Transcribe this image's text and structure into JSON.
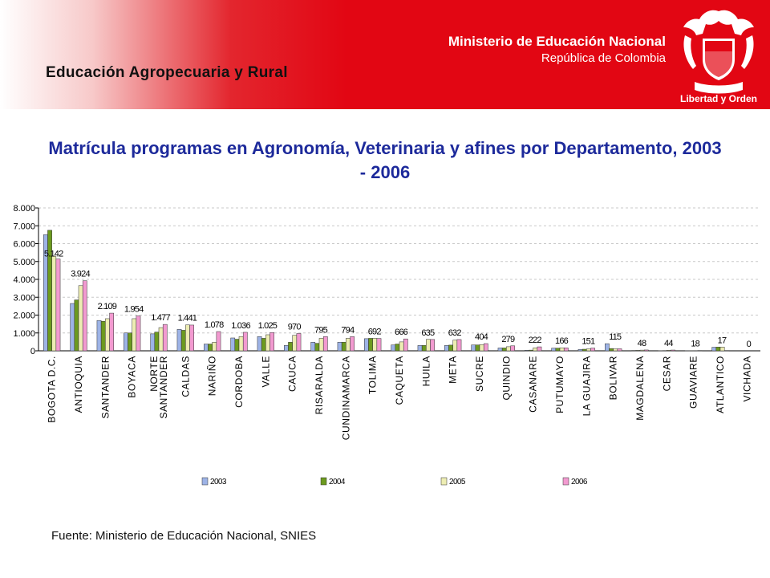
{
  "header": {
    "section_title": "Educación Agropecuaria y Rural",
    "ministry": "Ministerio de Educación Nacional",
    "country": "República de Colombia",
    "motto": "Libertad y Orden"
  },
  "source": "Fuente: Ministerio de Educación Nacional, SNIES",
  "chart_data": {
    "type": "bar",
    "title": "Matrícula programas en Agronomía, Veterinaria y afines por Departamento, 2003 - 2006",
    "xlabel": "",
    "ylabel": "",
    "ylim": [
      0,
      8000
    ],
    "yticks": [
      "0",
      "1.000",
      "2.000",
      "3.000",
      "4.000",
      "5.000",
      "6.000",
      "7.000",
      "8.000"
    ],
    "grid": true,
    "legend_position": "bottom",
    "categories": [
      "BOGOTA D.C.",
      "ANTIOQUIA",
      "SANTANDER",
      "BOYACA",
      "NORTE SANTANDER",
      "CALDAS",
      "NARIÑO",
      "CORDOBA",
      "VALLE",
      "CAUCA",
      "RISARALDA",
      "CUNDINAMARCA",
      "TOLIMA",
      "CAQUETA",
      "HUILA",
      "META",
      "SUCRE",
      "QUINDIO",
      "CASANARE",
      "PUTUMAYO",
      "LA GUAJIRA",
      "BOLIVAR",
      "MAGDALENA",
      "CESAR",
      "GUAVIARE",
      "ATLANTICO",
      "VICHADA"
    ],
    "series": [
      {
        "name": "2003",
        "color": "#9db3e6",
        "values": [
          6500,
          2650,
          1700,
          1000,
          950,
          1200,
          380,
          720,
          800,
          300,
          480,
          480,
          680,
          330,
          300,
          300,
          330,
          160,
          30,
          150,
          80,
          400,
          20,
          10,
          5,
          200,
          0
        ]
      },
      {
        "name": "2004",
        "color": "#6c9a1f",
        "values": [
          6750,
          2850,
          1650,
          1000,
          1050,
          1150,
          380,
          650,
          700,
          480,
          420,
          480,
          700,
          380,
          300,
          320,
          330,
          160,
          40,
          150,
          90,
          130,
          25,
          15,
          8,
          210,
          0
        ]
      },
      {
        "name": "2005",
        "color": "#ededb3",
        "values": [
          5300,
          3650,
          1800,
          1800,
          1300,
          1450,
          480,
          800,
          900,
          870,
          700,
          700,
          700,
          500,
          640,
          600,
          350,
          230,
          170,
          170,
          110,
          110,
          40,
          35,
          12,
          210,
          0
        ]
      },
      {
        "name": "2006",
        "color": "#f29ad0",
        "values": [
          5142,
          3924,
          2109,
          1954,
          1477,
          1441,
          1078,
          1036,
          1025,
          970,
          795,
          794,
          692,
          666,
          635,
          632,
          404,
          279,
          222,
          166,
          151,
          115,
          48,
          44,
          18,
          17,
          0
        ]
      }
    ],
    "data_labels": [
      "5.142",
      "3.924",
      "2.109",
      "1.954",
      "1.477",
      "1.441",
      "1.078",
      "1.036",
      "1.025",
      "970",
      "795",
      "794",
      "692",
      "666",
      "635",
      "632",
      "404",
      "279",
      "222",
      "166",
      "151",
      "115",
      "48",
      "44",
      "18",
      "17",
      "0"
    ]
  }
}
